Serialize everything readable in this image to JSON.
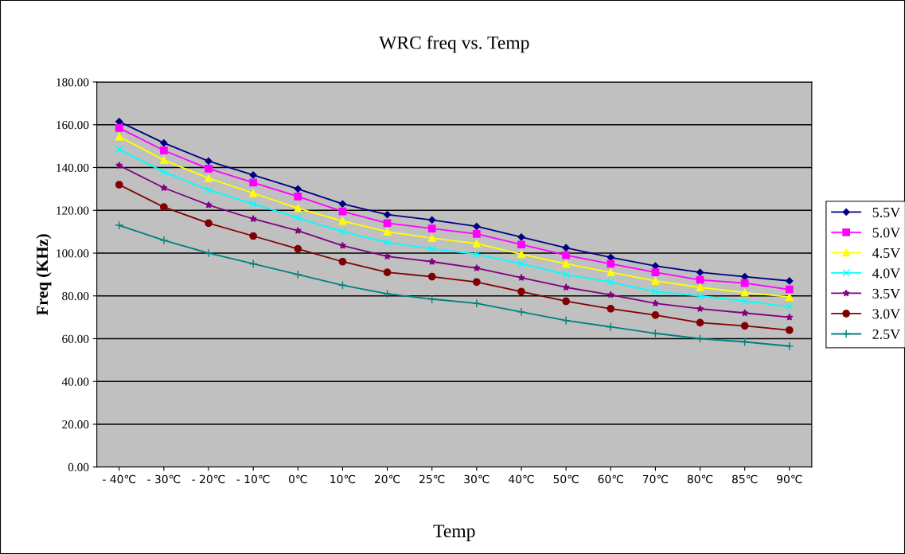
{
  "chart_data": {
    "type": "line",
    "title": "WRC freq vs. Temp",
    "xlabel": "Temp",
    "ylabel": "Freq (KHz)",
    "categories": [
      "- 40℃",
      "- 30℃",
      "- 20℃",
      "- 10℃",
      "0℃",
      "10℃",
      "20℃",
      "25℃",
      "30℃",
      "40℃",
      "50℃",
      "60℃",
      "70℃",
      "80℃",
      "85℃",
      "90℃"
    ],
    "ylim": [
      0,
      180
    ],
    "yticks": [
      {
        "value": 0,
        "label": "0.00"
      },
      {
        "value": 20,
        "label": "20.00"
      },
      {
        "value": 40,
        "label": "40.00"
      },
      {
        "value": 60,
        "label": "60.00"
      },
      {
        "value": 80,
        "label": "80.00"
      },
      {
        "value": 100,
        "label": "100.00"
      },
      {
        "value": 120,
        "label": "120.00"
      },
      {
        "value": 140,
        "label": "140.00"
      },
      {
        "value": 160,
        "label": "160.00"
      },
      {
        "value": 180,
        "label": "180.00"
      }
    ],
    "grid": "y",
    "legend": "right",
    "line_style": "solid",
    "series": [
      {
        "name": "5.5V",
        "color": "#000080",
        "marker": "diamond",
        "values": [
          161.5,
          151.5,
          143,
          136.5,
          130,
          123,
          118,
          115.5,
          112.5,
          107.5,
          102.5,
          98,
          94,
          91,
          89,
          87
        ]
      },
      {
        "name": "5.0V",
        "color": "#ff00ff",
        "marker": "square",
        "values": [
          158.5,
          148,
          139.5,
          133,
          126.5,
          119.5,
          114,
          111.5,
          109,
          104,
          99,
          95,
          91,
          87.5,
          86,
          83
        ]
      },
      {
        "name": "4.5V",
        "color": "#ffff00",
        "marker": "triangle",
        "values": [
          154.5,
          143.5,
          135,
          128,
          121,
          115,
          110,
          107,
          104.5,
          99.5,
          95,
          91,
          87,
          84,
          81.5,
          79.5
        ]
      },
      {
        "name": "4.0V",
        "color": "#00ffff",
        "marker": "x",
        "values": [
          148.5,
          138,
          129.5,
          123,
          116.5,
          110,
          105,
          102,
          99.5,
          95,
          90,
          86.5,
          82,
          80,
          77.5,
          75
        ]
      },
      {
        "name": "3.5V",
        "color": "#800080",
        "marker": "star",
        "values": [
          141,
          130.5,
          122.5,
          116,
          110.5,
          103.5,
          98.5,
          96,
          93,
          88.5,
          84,
          80.5,
          76.5,
          74,
          72,
          70
        ]
      },
      {
        "name": "3.0V",
        "color": "#800000",
        "marker": "circle",
        "values": [
          132,
          121.5,
          114,
          108,
          102,
          96,
          91,
          89,
          86.5,
          82,
          77.5,
          74,
          71,
          67.5,
          66,
          64
        ]
      },
      {
        "name": "2.5V",
        "color": "#008080",
        "marker": "plus",
        "values": [
          113,
          106,
          100,
          95,
          90,
          85,
          81,
          78.5,
          76.5,
          72.5,
          68.5,
          65.5,
          62.5,
          60,
          58.5,
          56.5
        ]
      }
    ]
  }
}
